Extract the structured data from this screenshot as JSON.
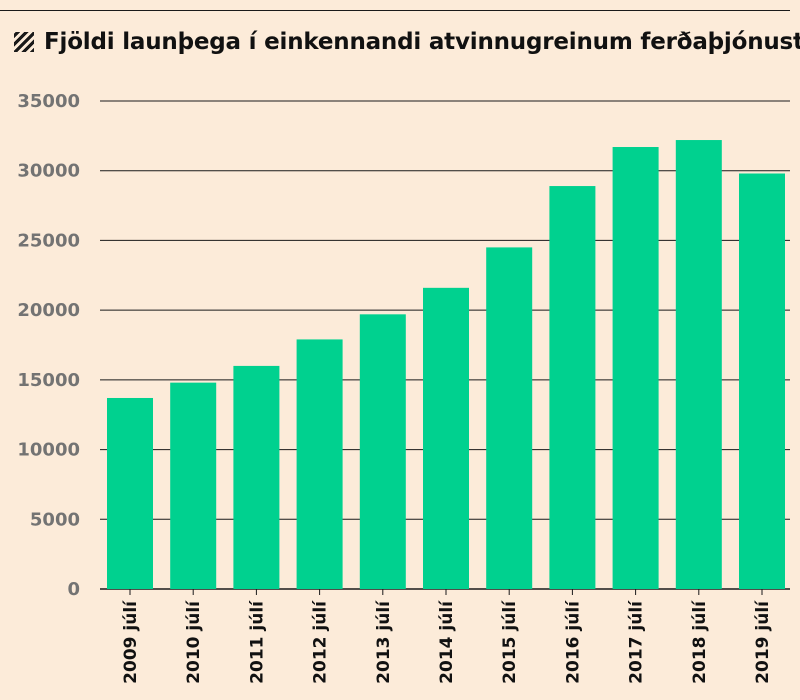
{
  "title": "Fjöldi launþega í einkennandi atvinnugreinum ferðaþjónustu",
  "colors": {
    "bar": "#00d18f",
    "background": "#fcebd9",
    "grid": "#1a1a1a",
    "ytick": "#737373"
  },
  "chart_data": {
    "type": "bar",
    "title": "Fjöldi launþega í einkennandi atvinnugreinum ferðaþjónustu",
    "categories": [
      "2009 júlí",
      "2010 júlí",
      "2011 júlí",
      "2012 júlí",
      "2013 júlí",
      "2014 júlí",
      "2015 júlí",
      "2016 júlí",
      "2017 júlí",
      "2018 júlí",
      "2019 júlí"
    ],
    "values": [
      13700,
      14800,
      16000,
      17900,
      19700,
      21600,
      24500,
      28900,
      31700,
      32200,
      29800
    ],
    "yticks": [
      0,
      5000,
      10000,
      15000,
      20000,
      25000,
      30000,
      35000
    ],
    "ylim": [
      0,
      35000
    ],
    "xlabel": "",
    "ylabel": "",
    "grid": true,
    "legend": "none"
  }
}
